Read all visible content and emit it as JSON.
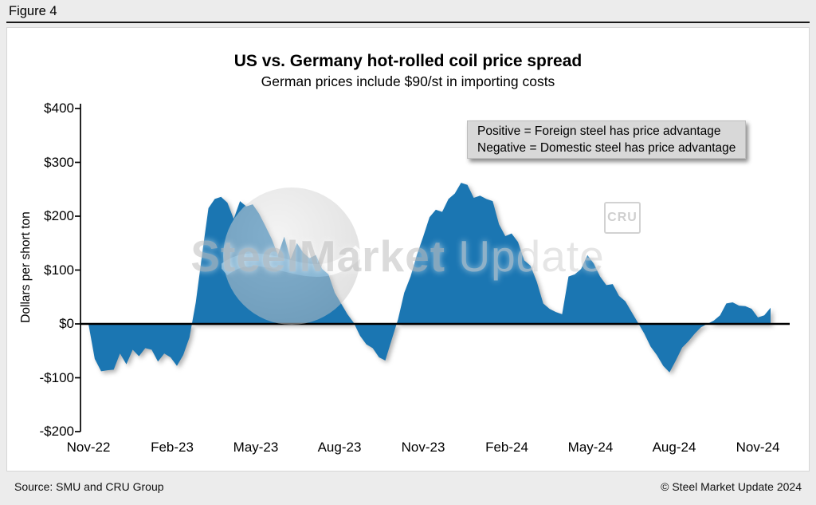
{
  "figure_label": "Figure 4",
  "title": "US vs. Germany hot-rolled coil price spread",
  "subtitle": "German prices include $90/st in importing costs",
  "annotation": {
    "line1": "Positive = Foreign steel has price advantage",
    "line2": "Negative = Domestic steel has price advantage"
  },
  "watermark": {
    "part1": "SteelMarket",
    "part2": " Update",
    "cru_label": "CRU",
    "globe_icon": "globe-swoosh-icon"
  },
  "footer": {
    "source": "Source: SMU and CRU Group",
    "copyright": "© Steel Market Update 2024"
  },
  "chart_data": {
    "type": "area",
    "title": "US vs. Germany hot-rolled coil price spread",
    "subtitle": "German prices include $90/st in importing costs",
    "ylabel": "Dollars per short ton",
    "unit": "USD per short ton",
    "ylim": [
      -200,
      400
    ],
    "yticks": [
      400,
      300,
      200,
      100,
      0,
      -100,
      -200
    ],
    "ytick_labels": [
      "$400",
      "$300",
      "$200",
      "$100",
      "$0",
      "-$100",
      "-$200"
    ],
    "xtick_labels": [
      "Nov-22",
      "Feb-23",
      "May-23",
      "Aug-23",
      "Nov-23",
      "Feb-24",
      "May-24",
      "Aug-24",
      "Nov-24"
    ],
    "x_start": "Nov-2022",
    "x_end": "Nov-2024",
    "frequency": "weekly",
    "grid": false,
    "legend": "none",
    "fill_color": "#1b76b2",
    "zero_line": true,
    "series_name": "US minus Germany HRC price spread",
    "values": [
      0,
      -65,
      -88,
      -86,
      -85,
      -55,
      -75,
      -48,
      -60,
      -45,
      -48,
      -70,
      -55,
      -62,
      -78,
      -58,
      -25,
      40,
      130,
      215,
      232,
      236,
      225,
      195,
      228,
      218,
      222,
      205,
      182,
      158,
      128,
      162,
      120,
      150,
      132,
      122,
      128,
      102,
      92,
      58,
      38,
      18,
      2,
      -22,
      -38,
      -45,
      -62,
      -68,
      -30,
      8,
      58,
      88,
      128,
      162,
      198,
      212,
      208,
      232,
      242,
      262,
      258,
      234,
      238,
      232,
      228,
      185,
      163,
      168,
      152,
      118,
      108,
      78,
      38,
      28,
      22,
      18,
      88,
      92,
      102,
      128,
      112,
      88,
      72,
      74,
      52,
      42,
      22,
      2,
      -18,
      -42,
      -58,
      -78,
      -90,
      -68,
      -44,
      -32,
      -18,
      -6,
      0,
      6,
      16,
      38,
      40,
      34,
      33,
      28,
      12,
      16,
      30
    ]
  }
}
